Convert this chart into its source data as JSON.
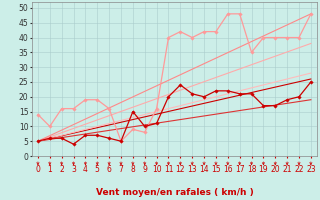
{
  "xlabel": "Vent moyen/en rafales ( km/h )",
  "bg_color": "#cceee8",
  "grid_color": "#aacccc",
  "xlim": [
    -0.5,
    23.5
  ],
  "ylim": [
    0,
    52
  ],
  "yticks": [
    0,
    5,
    10,
    15,
    20,
    25,
    30,
    35,
    40,
    45,
    50
  ],
  "xticks": [
    0,
    1,
    2,
    3,
    4,
    5,
    6,
    7,
    8,
    9,
    10,
    11,
    12,
    13,
    14,
    15,
    16,
    17,
    18,
    19,
    20,
    21,
    22,
    23
  ],
  "series": [
    {
      "x": [
        0,
        1,
        2,
        3,
        4,
        5,
        6,
        7,
        8,
        9,
        10,
        11,
        12,
        13,
        14,
        15,
        16,
        17,
        18,
        19,
        20,
        21,
        22,
        23
      ],
      "y": [
        5,
        6,
        6,
        4,
        7,
        7,
        6,
        5,
        15,
        10,
        11,
        20,
        24,
        21,
        20,
        22,
        22,
        21,
        21,
        17,
        17,
        19,
        20,
        25
      ],
      "color": "#cc0000",
      "marker": "D",
      "markersize": 1.8,
      "linewidth": 0.9,
      "zorder": 5
    },
    {
      "x": [
        0,
        1,
        2,
        3,
        4,
        5,
        6,
        7,
        8,
        9,
        10,
        11,
        12,
        13,
        14,
        15,
        16,
        17,
        18,
        19,
        20,
        21,
        22,
        23
      ],
      "y": [
        14,
        10,
        16,
        16,
        19,
        19,
        16,
        5,
        9,
        8,
        16,
        40,
        42,
        40,
        42,
        42,
        48,
        48,
        35,
        40,
        40,
        40,
        40,
        48
      ],
      "color": "#ff9999",
      "marker": "D",
      "markersize": 1.8,
      "linewidth": 0.9,
      "zorder": 4
    },
    {
      "x": [
        0,
        23
      ],
      "y": [
        5,
        26
      ],
      "color": "#cc0000",
      "marker": null,
      "linewidth": 0.8,
      "zorder": 3
    },
    {
      "x": [
        0,
        23
      ],
      "y": [
        5,
        19
      ],
      "color": "#dd3333",
      "marker": null,
      "linewidth": 0.8,
      "zorder": 3
    },
    {
      "x": [
        0,
        23
      ],
      "y": [
        5,
        38
      ],
      "color": "#ffaaaa",
      "marker": null,
      "linewidth": 0.8,
      "zorder": 3
    },
    {
      "x": [
        0,
        23
      ],
      "y": [
        5,
        28
      ],
      "color": "#ffbbbb",
      "marker": null,
      "linewidth": 0.8,
      "zorder": 3
    },
    {
      "x": [
        0,
        23
      ],
      "y": [
        5,
        48
      ],
      "color": "#ff8888",
      "marker": null,
      "linewidth": 0.8,
      "zorder": 3
    }
  ],
  "arrow_color": "#cc0000",
  "xlabel_color": "#cc0000",
  "xlabel_fontsize": 6.5,
  "tick_fontsize": 5.5
}
